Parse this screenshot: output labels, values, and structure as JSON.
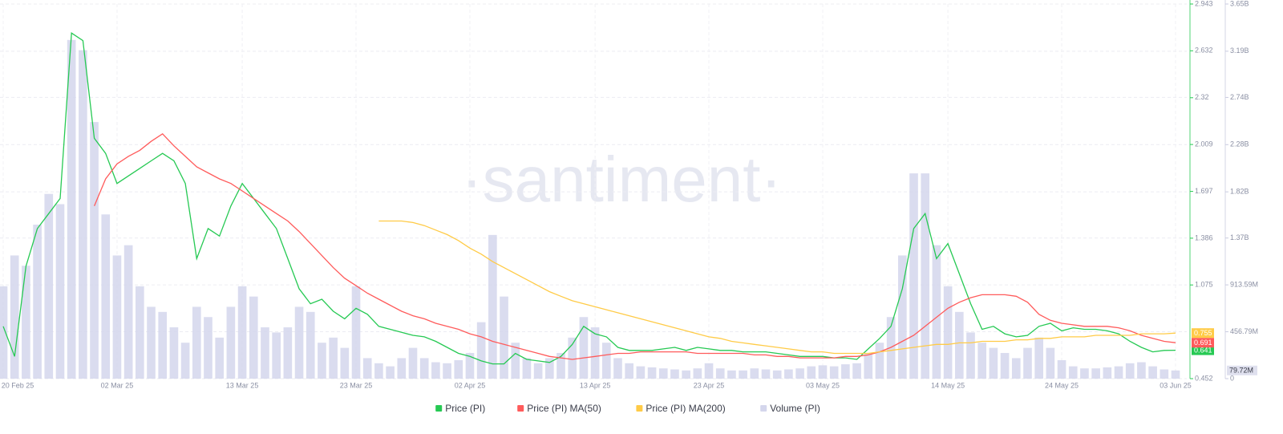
{
  "chart_data": {
    "type": "line",
    "watermark": "·santiment·",
    "categories": [
      "20 Feb 25",
      null,
      null,
      null,
      null,
      null,
      null,
      null,
      null,
      null,
      "02 Mar 25",
      null,
      null,
      null,
      null,
      null,
      null,
      null,
      null,
      null,
      null,
      "13 Mar 25",
      null,
      null,
      null,
      null,
      null,
      null,
      null,
      null,
      null,
      "23 Mar 25",
      null,
      null,
      null,
      null,
      null,
      null,
      null,
      null,
      null,
      "02 Apr 25",
      null,
      null,
      null,
      null,
      null,
      null,
      null,
      null,
      null,
      null,
      "13 Apr 25",
      null,
      null,
      null,
      null,
      null,
      null,
      null,
      null,
      null,
      "23 Apr 25",
      null,
      null,
      null,
      null,
      null,
      null,
      null,
      null,
      null,
      "03 May 25",
      null,
      null,
      null,
      null,
      null,
      null,
      null,
      null,
      null,
      null,
      "14 May 25",
      null,
      null,
      null,
      null,
      null,
      null,
      null,
      null,
      null,
      "24 May 25",
      null,
      null,
      null,
      null,
      null,
      null,
      null,
      null,
      null,
      "03 Jun 25"
    ],
    "ylim": [
      0.452,
      2.943
    ],
    "yticks": [
      0.452,
      1.075,
      1.386,
      1.697,
      2.009,
      2.32,
      2.632,
      2.943
    ],
    "y2lim": [
      0,
      3650000000
    ],
    "y2ticks": [
      0,
      {
        "value": 456790000,
        "label": "456.79M"
      },
      {
        "value": 913590000,
        "label": "913.59M"
      },
      {
        "value": 1370000000,
        "label": "1.37B"
      },
      {
        "value": 1820000000,
        "label": "1.82B"
      },
      {
        "value": 2280000000,
        "label": "2.28B"
      },
      {
        "value": 2740000000,
        "label": "2.74B"
      },
      {
        "value": 3190000000,
        "label": "3.19B"
      },
      {
        "value": 3650000000,
        "label": "3.65B"
      }
    ],
    "grid": true,
    "legend": "bottom",
    "series": [
      {
        "name": "Price (PI)",
        "color": "#26c953",
        "kind": "line",
        "values": [
          0.8,
          0.6,
          1.2,
          1.45,
          1.55,
          1.65,
          2.75,
          2.7,
          2.05,
          1.95,
          1.75,
          1.8,
          1.85,
          1.9,
          1.95,
          1.9,
          1.75,
          1.25,
          1.45,
          1.4,
          1.6,
          1.75,
          1.65,
          1.55,
          1.45,
          1.25,
          1.05,
          0.95,
          0.98,
          0.9,
          0.85,
          0.92,
          0.88,
          0.8,
          0.78,
          0.76,
          0.74,
          0.73,
          0.7,
          0.66,
          0.62,
          0.6,
          0.57,
          0.55,
          0.55,
          0.62,
          0.58,
          0.57,
          0.56,
          0.6,
          0.68,
          0.8,
          0.75,
          0.73,
          0.66,
          0.64,
          0.64,
          0.64,
          0.65,
          0.66,
          0.64,
          0.66,
          0.65,
          0.64,
          0.64,
          0.63,
          0.63,
          0.63,
          0.62,
          0.61,
          0.6,
          0.6,
          0.6,
          0.59,
          0.59,
          0.58,
          0.65,
          0.72,
          0.8,
          1.05,
          1.45,
          1.55,
          1.25,
          1.35,
          1.15,
          0.95,
          0.78,
          0.8,
          0.75,
          0.73,
          0.74,
          0.8,
          0.82,
          0.77,
          0.79,
          0.78,
          0.78,
          0.77,
          0.75,
          0.7,
          0.66,
          0.63,
          0.64,
          0.641
        ]
      },
      {
        "name": "Price (PI) MA(50)",
        "color": "#ff5b5b",
        "kind": "line",
        "values": [
          null,
          null,
          null,
          null,
          null,
          null,
          null,
          null,
          1.6,
          1.78,
          1.88,
          1.93,
          1.97,
          2.03,
          2.08,
          2.0,
          1.93,
          1.86,
          1.82,
          1.78,
          1.75,
          1.7,
          1.65,
          1.6,
          1.55,
          1.5,
          1.43,
          1.35,
          1.27,
          1.19,
          1.12,
          1.07,
          1.02,
          0.98,
          0.94,
          0.9,
          0.87,
          0.85,
          0.82,
          0.8,
          0.78,
          0.75,
          0.73,
          0.7,
          0.68,
          0.66,
          0.64,
          0.62,
          0.6,
          0.59,
          0.58,
          0.59,
          0.6,
          0.61,
          0.62,
          0.62,
          0.63,
          0.63,
          0.63,
          0.63,
          0.63,
          0.62,
          0.62,
          0.62,
          0.62,
          0.62,
          0.61,
          0.61,
          0.6,
          0.6,
          0.59,
          0.59,
          0.59,
          0.59,
          0.6,
          0.6,
          0.61,
          0.63,
          0.66,
          0.7,
          0.74,
          0.8,
          0.86,
          0.92,
          0.96,
          0.99,
          1.01,
          1.01,
          1.01,
          1.0,
          0.96,
          0.88,
          0.84,
          0.82,
          0.81,
          0.8,
          0.8,
          0.8,
          0.79,
          0.77,
          0.74,
          0.72,
          0.7,
          0.691
        ]
      },
      {
        "name": "Price (PI) MA(200)",
        "color": "#ffcb47",
        "kind": "line",
        "values": [
          null,
          null,
          null,
          null,
          null,
          null,
          null,
          null,
          null,
          null,
          null,
          null,
          null,
          null,
          null,
          null,
          null,
          null,
          null,
          null,
          null,
          null,
          null,
          null,
          null,
          null,
          null,
          null,
          null,
          null,
          null,
          null,
          null,
          1.5,
          1.5,
          1.5,
          1.49,
          1.47,
          1.44,
          1.41,
          1.37,
          1.32,
          1.28,
          1.23,
          1.19,
          1.15,
          1.11,
          1.07,
          1.03,
          1.0,
          0.97,
          0.95,
          0.93,
          0.91,
          0.89,
          0.87,
          0.85,
          0.83,
          0.81,
          0.79,
          0.77,
          0.75,
          0.73,
          0.72,
          0.7,
          0.69,
          0.68,
          0.67,
          0.66,
          0.65,
          0.64,
          0.63,
          0.63,
          0.62,
          0.62,
          0.62,
          0.62,
          0.63,
          0.64,
          0.65,
          0.66,
          0.67,
          0.68,
          0.68,
          0.69,
          0.69,
          0.7,
          0.7,
          0.7,
          0.71,
          0.71,
          0.72,
          0.72,
          0.73,
          0.73,
          0.73,
          0.74,
          0.74,
          0.74,
          0.74,
          0.75,
          0.75,
          0.75,
          0.755
        ]
      },
      {
        "name": "Volume (PI)",
        "color": "#d4d6ec",
        "kind": "bar",
        "axis": "y2",
        "last_label": "79.72M",
        "values": [
          900000000,
          1200000000,
          1100000000,
          1500000000,
          1800000000,
          1700000000,
          3300000000,
          3200000000,
          2500000000,
          1600000000,
          1200000000,
          1300000000,
          900000000,
          700000000,
          650000000,
          500000000,
          350000000,
          700000000,
          600000000,
          400000000,
          700000000,
          900000000,
          800000000,
          500000000,
          450000000,
          500000000,
          700000000,
          650000000,
          350000000,
          400000000,
          300000000,
          900000000,
          200000000,
          150000000,
          120000000,
          200000000,
          300000000,
          200000000,
          160000000,
          150000000,
          180000000,
          250000000,
          550000000,
          1400000000,
          800000000,
          350000000,
          200000000,
          150000000,
          200000000,
          250000000,
          400000000,
          600000000,
          500000000,
          350000000,
          200000000,
          150000000,
          120000000,
          110000000,
          100000000,
          90000000,
          80000000,
          100000000,
          150000000,
          100000000,
          80000000,
          80000000,
          100000000,
          90000000,
          80000000,
          90000000,
          100000000,
          120000000,
          130000000,
          120000000,
          140000000,
          150000000,
          250000000,
          350000000,
          600000000,
          1200000000,
          2000000000,
          2000000000,
          1300000000,
          900000000,
          650000000,
          450000000,
          350000000,
          300000000,
          250000000,
          200000000,
          300000000,
          400000000,
          300000000,
          180000000,
          120000000,
          100000000,
          100000000,
          110000000,
          120000000,
          150000000,
          160000000,
          120000000,
          90000000,
          79720000
        ]
      }
    ]
  }
}
